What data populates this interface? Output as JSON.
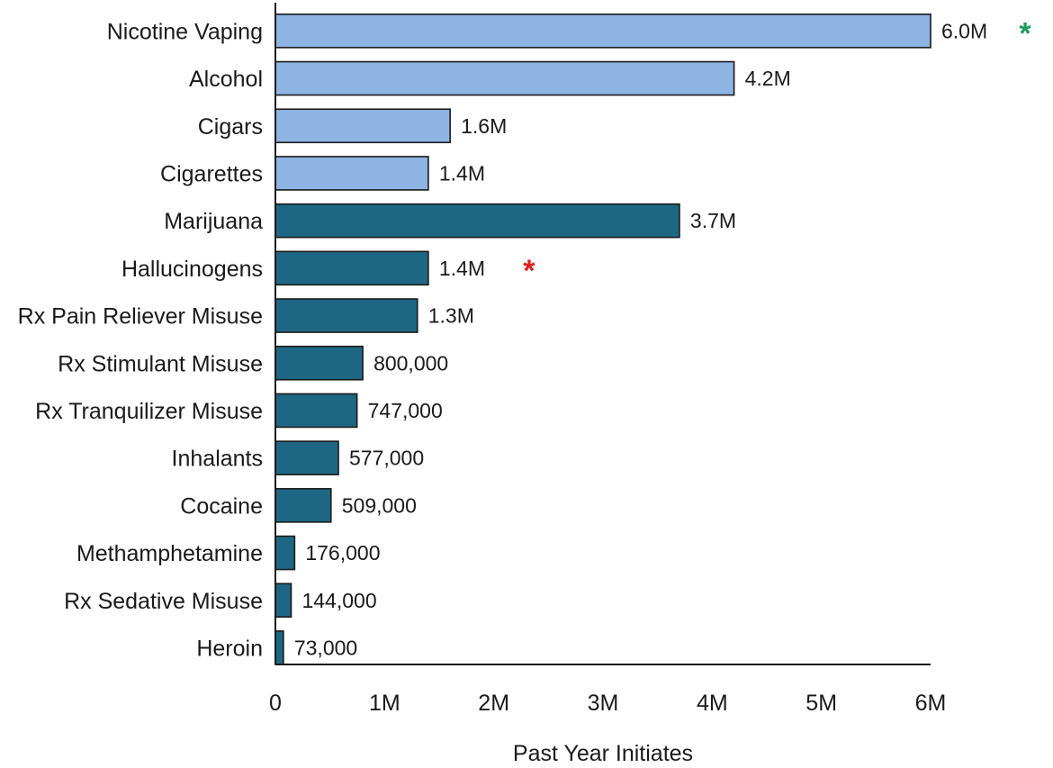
{
  "chart_data": {
    "type": "bar",
    "orientation": "horizontal",
    "title": "",
    "xlabel": "Past Year Initiates",
    "ylabel": "",
    "xlim": [
      0,
      6000000
    ],
    "x_ticks": [
      {
        "value": 0,
        "label": "0"
      },
      {
        "value": 1000000,
        "label": "1M"
      },
      {
        "value": 2000000,
        "label": "2M"
      },
      {
        "value": 3000000,
        "label": "3M"
      },
      {
        "value": 4000000,
        "label": "4M"
      },
      {
        "value": 5000000,
        "label": "5M"
      },
      {
        "value": 6000000,
        "label": "6M"
      }
    ],
    "grid": false,
    "colors": {
      "light": "#8eb4e3",
      "dark": "#1e6784",
      "outline": "#1a1a1a"
    },
    "bars": [
      {
        "category": "Nicotine Vaping",
        "value": 6000000,
        "label": "6.0M",
        "color": "light",
        "marker": {
          "symbol": "*",
          "color": "#1aa05a"
        }
      },
      {
        "category": "Alcohol",
        "value": 4200000,
        "label": "4.2M",
        "color": "light"
      },
      {
        "category": "Cigars",
        "value": 1600000,
        "label": "1.6M",
        "color": "light"
      },
      {
        "category": "Cigarettes",
        "value": 1400000,
        "label": "1.4M",
        "color": "light"
      },
      {
        "category": "Marijuana",
        "value": 3700000,
        "label": "3.7M",
        "color": "dark"
      },
      {
        "category": "Hallucinogens",
        "value": 1400000,
        "label": "1.4M",
        "color": "dark",
        "marker": {
          "symbol": "*",
          "color": "#e0201c"
        }
      },
      {
        "category": "Rx Pain Reliever Misuse",
        "value": 1300000,
        "label": "1.3M",
        "color": "dark"
      },
      {
        "category": "Rx Stimulant Misuse",
        "value": 800000,
        "label": "800,000",
        "color": "dark"
      },
      {
        "category": "Rx Tranquilizer Misuse",
        "value": 747000,
        "label": "747,000",
        "color": "dark"
      },
      {
        "category": "Inhalants",
        "value": 577000,
        "label": "577,000",
        "color": "dark"
      },
      {
        "category": "Cocaine",
        "value": 509000,
        "label": "509,000",
        "color": "dark"
      },
      {
        "category": "Methamphetamine",
        "value": 176000,
        "label": "176,000",
        "color": "dark"
      },
      {
        "category": "Rx Sedative Misuse",
        "value": 144000,
        "label": "144,000",
        "color": "dark"
      },
      {
        "category": "Heroin",
        "value": 73000,
        "label": "73,000",
        "color": "dark"
      }
    ]
  }
}
